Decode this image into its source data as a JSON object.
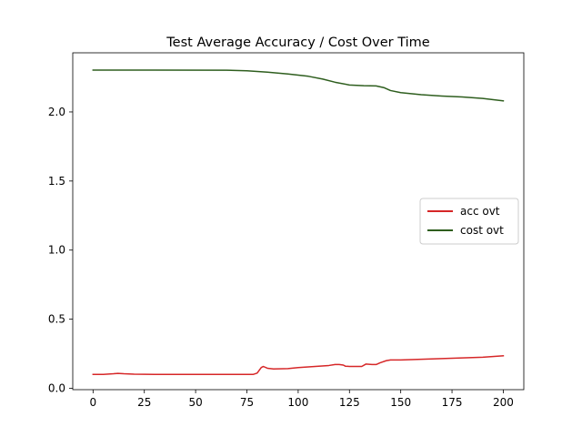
{
  "chart_data": {
    "type": "line",
    "title": "Test Average Accuracy / Cost Over Time",
    "xlabel": "",
    "ylabel": "",
    "xlim": [
      -9.9,
      210
    ],
    "ylim": [
      -0.01,
      2.428
    ],
    "x_ticks": [
      0,
      25,
      50,
      75,
      100,
      125,
      150,
      175,
      200
    ],
    "x_tick_labels": [
      "0",
      "25",
      "50",
      "75",
      "100",
      "125",
      "150",
      "175",
      "200"
    ],
    "y_ticks": [
      0.0,
      0.5,
      1.0,
      1.5,
      2.0
    ],
    "y_tick_labels": [
      "0.0",
      "0.5",
      "1.0",
      "1.5",
      "2.0"
    ],
    "grid": false,
    "legend_position": "center-right",
    "series": [
      {
        "name": "acc ovt",
        "color": "#d62728",
        "points": [
          [
            0,
            0.1
          ],
          [
            5,
            0.1
          ],
          [
            10,
            0.105
          ],
          [
            12,
            0.108
          ],
          [
            15,
            0.105
          ],
          [
            20,
            0.102
          ],
          [
            30,
            0.1
          ],
          [
            50,
            0.1
          ],
          [
            70,
            0.1
          ],
          [
            78,
            0.1
          ],
          [
            80,
            0.11
          ],
          [
            82,
            0.15
          ],
          [
            83,
            0.158
          ],
          [
            85,
            0.145
          ],
          [
            88,
            0.14
          ],
          [
            95,
            0.142
          ],
          [
            100,
            0.15
          ],
          [
            105,
            0.155
          ],
          [
            110,
            0.16
          ],
          [
            115,
            0.165
          ],
          [
            118,
            0.172
          ],
          [
            120,
            0.172
          ],
          [
            122,
            0.168
          ],
          [
            123,
            0.16
          ],
          [
            125,
            0.158
          ],
          [
            131,
            0.158
          ],
          [
            133,
            0.175
          ],
          [
            136,
            0.172
          ],
          [
            138,
            0.172
          ],
          [
            140,
            0.185
          ],
          [
            143,
            0.2
          ],
          [
            145,
            0.205
          ],
          [
            150,
            0.205
          ],
          [
            160,
            0.21
          ],
          [
            170,
            0.215
          ],
          [
            180,
            0.22
          ],
          [
            190,
            0.225
          ],
          [
            200,
            0.235
          ]
        ]
      },
      {
        "name": "cost ovt",
        "color": "#2e5e1e",
        "points": [
          [
            0,
            2.303
          ],
          [
            30,
            2.303
          ],
          [
            65,
            2.302
          ],
          [
            75,
            2.298
          ],
          [
            85,
            2.288
          ],
          [
            95,
            2.275
          ],
          [
            105,
            2.258
          ],
          [
            112,
            2.238
          ],
          [
            118,
            2.215
          ],
          [
            125,
            2.195
          ],
          [
            132,
            2.19
          ],
          [
            138,
            2.188
          ],
          [
            142,
            2.175
          ],
          [
            145,
            2.155
          ],
          [
            150,
            2.14
          ],
          [
            160,
            2.125
          ],
          [
            170,
            2.115
          ],
          [
            180,
            2.108
          ],
          [
            190,
            2.098
          ],
          [
            200,
            2.08
          ]
        ]
      }
    ]
  }
}
